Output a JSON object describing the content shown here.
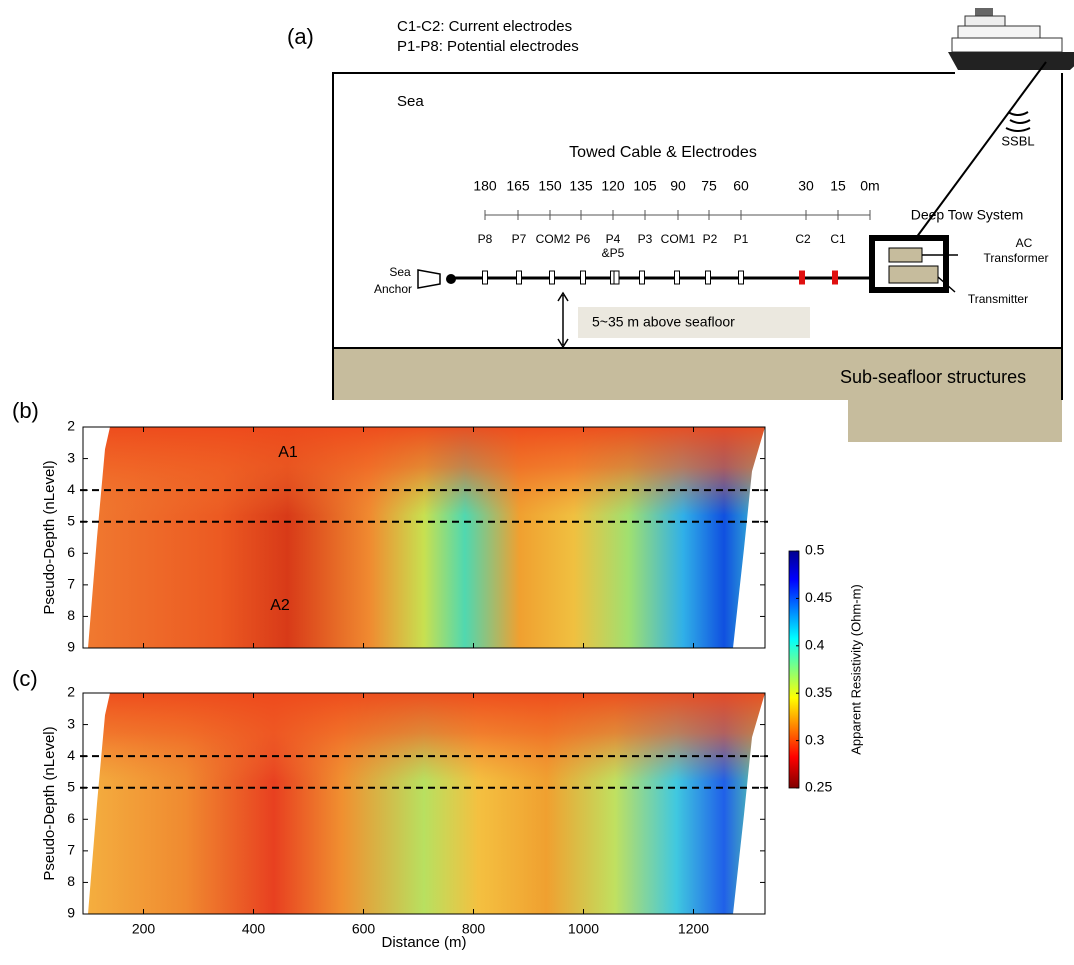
{
  "panel_a": {
    "label": "(a)",
    "legend": [
      "C1-C2: Current electrodes",
      "P1-P8: Potential electrodes"
    ],
    "sea": "Sea",
    "ssbl": "SSBL",
    "cable_title": "Towed Cable & Electrodes",
    "distances": [
      "180",
      "165",
      "150",
      "135",
      "120",
      "105",
      "90",
      "75",
      "60",
      "30",
      "15",
      "0m"
    ],
    "electrodes": [
      "P8",
      "P7",
      "COM2",
      "P6",
      "P4",
      "P3",
      "COM1",
      "P2",
      "P1",
      "C2",
      "C1"
    ],
    "electrode_note": "&P5",
    "deep_tow": "Deep Tow System",
    "transformer": [
      "AC",
      "Transformer"
    ],
    "transmitter": "Transmitter",
    "anchor": [
      "Sea",
      "Anchor"
    ],
    "height": "5~35 m above seafloor",
    "subseafloor": "Sub-seafloor structures"
  },
  "chart_data": [
    {
      "type": "contour",
      "label": "(b)",
      "ylabel": "Pseudo-Depth (nLevel)",
      "xlim": [
        90,
        1330
      ],
      "xticks": [
        200,
        400,
        600,
        800,
        1000,
        1200
      ],
      "ylim": [
        2,
        9
      ],
      "y_inverted": true,
      "yticks": [
        2,
        3,
        4,
        5,
        6,
        7,
        8,
        9
      ],
      "dashed_levels": [
        4,
        5
      ],
      "annotations": [
        "A1",
        "A2"
      ]
    },
    {
      "type": "contour",
      "label": "(c)",
      "ylabel": "Pseudo-Depth (nLevel)",
      "xlabel": "Distance (m)",
      "xlim": [
        90,
        1330
      ],
      "xticks": [
        200,
        400,
        600,
        800,
        1000,
        1200
      ],
      "ylim": [
        2,
        9
      ],
      "y_inverted": true,
      "yticks": [
        2,
        3,
        4,
        5,
        6,
        7,
        8,
        9
      ],
      "dashed_levels": [
        4,
        5
      ]
    }
  ],
  "colorbar": {
    "label": "Apparent Resistivity (Ohm-m)",
    "lim": [
      0.25,
      0.5
    ],
    "ticks": [
      0.25,
      0.3,
      0.35,
      0.4,
      0.45,
      0.5
    ]
  }
}
